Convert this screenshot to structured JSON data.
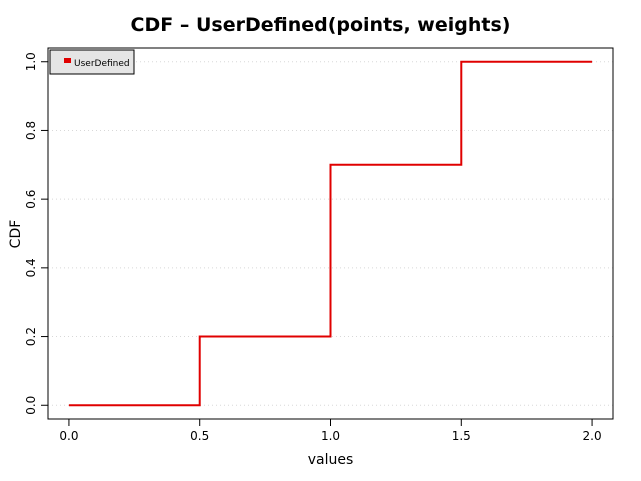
{
  "chart_data": {
    "type": "line",
    "title": "CDF – UserDefined(points, weights)",
    "xlabel": "values",
    "ylabel": "CDF",
    "xlim": [
      -0.08,
      2.08
    ],
    "ylim": [
      -0.04,
      1.04
    ],
    "xticks": [
      "0.0",
      "0.5",
      "1.0",
      "1.5",
      "2.0"
    ],
    "yticks": [
      "0.0",
      "0.2",
      "0.4",
      "0.6",
      "0.8",
      "1.0"
    ],
    "grid": "dotted horizontal",
    "legend": {
      "position": "top-left",
      "entries": [
        "UserDefined"
      ]
    },
    "series": [
      {
        "name": "UserDefined",
        "color": "#e00000",
        "step": true,
        "x": [
          0.0,
          0.5,
          1.0,
          1.5,
          2.0
        ],
        "y": [
          0.0,
          0.2,
          0.7,
          1.0,
          1.0
        ]
      }
    ]
  }
}
